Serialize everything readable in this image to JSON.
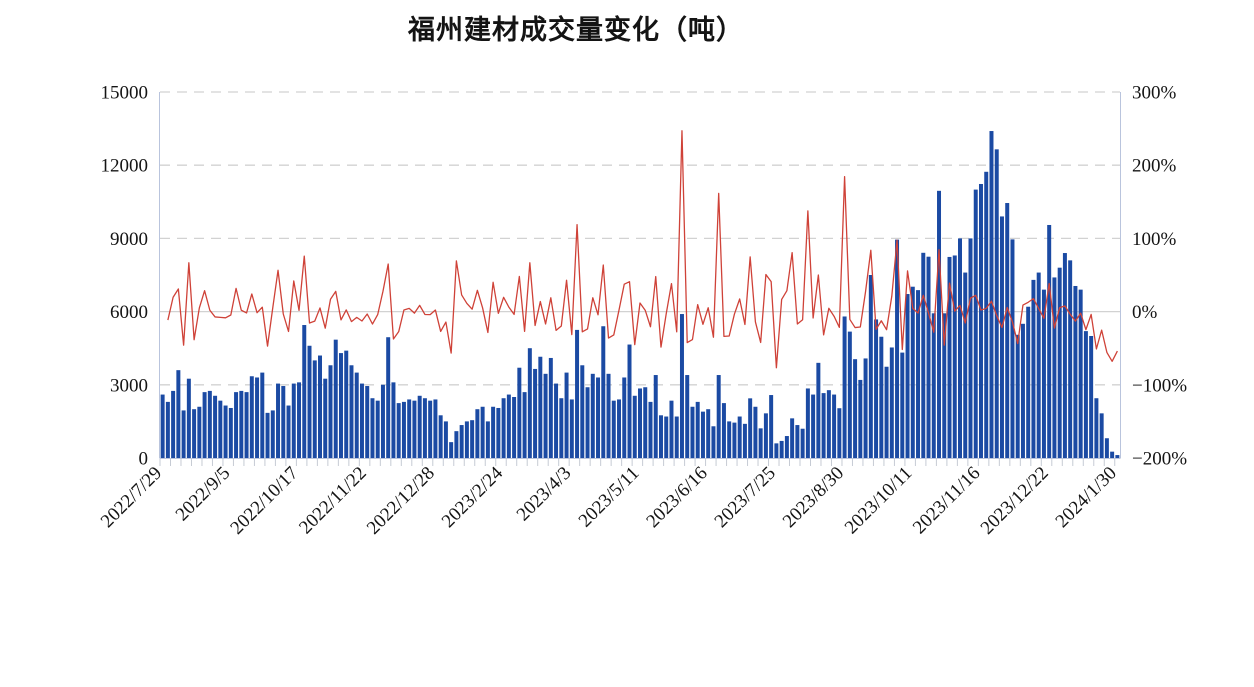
{
  "title": "福州建材成交量变化（吨）",
  "chart_data": {
    "type": "bar",
    "title": "福州建材成交量变化（吨）",
    "x_tick_labels": [
      "2022/7/29",
      "2022/9/5",
      "2022/10/17",
      "2022/11/22",
      "2022/12/28",
      "2023/2/24",
      "2023/4/3",
      "2023/5/11",
      "2023/6/16",
      "2023/7/25",
      "2023/8/30",
      "2023/10/11",
      "2023/11/16",
      "2023/12/22",
      "2024/1/30"
    ],
    "x_label_every_n_points": 13,
    "left_axis": {
      "min": 0,
      "max": 15000,
      "tick_values": [
        0,
        3000,
        6000,
        9000,
        12000,
        15000
      ],
      "tick_labels": [
        "0",
        "3000",
        "6000",
        "9000",
        "12000",
        "15000"
      ]
    },
    "right_axis": {
      "min": -200,
      "max": 300,
      "tick_values": [
        -200,
        -100,
        0,
        100,
        200,
        300
      ],
      "tick_labels": [
        "−200%",
        "−100%",
        "0%",
        "100%",
        "200%",
        "300%"
      ]
    },
    "grid": {
      "dashed_at": [
        3000,
        9000,
        12000,
        15000
      ],
      "solid_at": [
        6000
      ],
      "color": "#d2d2d2"
    },
    "series": [
      {
        "name": "volume_tons",
        "type": "bar",
        "axis": "left",
        "color": "#1b4aa3",
        "values": [
          2600,
          2300,
          2750,
          3600,
          1950,
          3250,
          2000,
          2100,
          2700,
          2750,
          2550,
          2350,
          2150,
          2050,
          2700,
          2750,
          2700,
          3350,
          3300,
          3500,
          1850,
          1950,
          3050,
          2950,
          2150,
          3050,
          3100,
          5450,
          4600,
          4000,
          4200,
          3250,
          3800,
          4850,
          4300,
          4400,
          3800,
          3500,
          3050,
          2950,
          2450,
          2350,
          3000,
          4950,
          3100,
          2250,
          2300,
          2400,
          2350,
          2550,
          2450,
          2350,
          2400,
          1750,
          1500,
          650,
          1100,
          1350,
          1500,
          1550,
          2000,
          2100,
          1500,
          2100,
          2050,
          2450,
          2600,
          2500,
          3700,
          2700,
          4500,
          3650,
          4150,
          3450,
          4100,
          3050,
          2450,
          3500,
          2400,
          5250,
          3800,
          2900,
          3450,
          3300,
          5400,
          3450,
          2350,
          2400,
          3300,
          4650,
          2550,
          2850,
          2900,
          2300,
          3400,
          1750,
          1700,
          2350,
          1700,
          5900,
          3400,
          2100,
          2300,
          1900,
          2000,
          1300,
          3400,
          2250,
          1500,
          1450,
          1700,
          1400,
          2445,
          2100,
          1215,
          1830,
          2580,
          600,
          700,
          900,
          1625,
          1350,
          1200,
          2850,
          2600,
          3900,
          2660,
          2780,
          2600,
          2040,
          5800,
          5180,
          4050,
          3200,
          4080,
          7500,
          5680,
          4970,
          3740,
          4530,
          8950,
          4320,
          6720,
          7020,
          6880,
          8410,
          8250,
          5930,
          10950,
          5930,
          8240,
          8300,
          9000,
          7600,
          9000,
          11000,
          11230,
          11730,
          13400,
          12650,
          9900,
          10450,
          8960,
          5050,
          5500,
          6200,
          7300,
          7600,
          6900,
          9550,
          7400,
          7800,
          8400,
          8100,
          7050,
          6900,
          5200,
          5000,
          2450,
          1830,
          810,
          260,
          120
        ]
      },
      {
        "name": "pct_change",
        "type": "line",
        "axis": "right",
        "color": "#cf4238",
        "derivation": "percent change vs previous point: (v[i]-v[i-1])/v[i-1]*100, plotted from second point"
      }
    ]
  }
}
